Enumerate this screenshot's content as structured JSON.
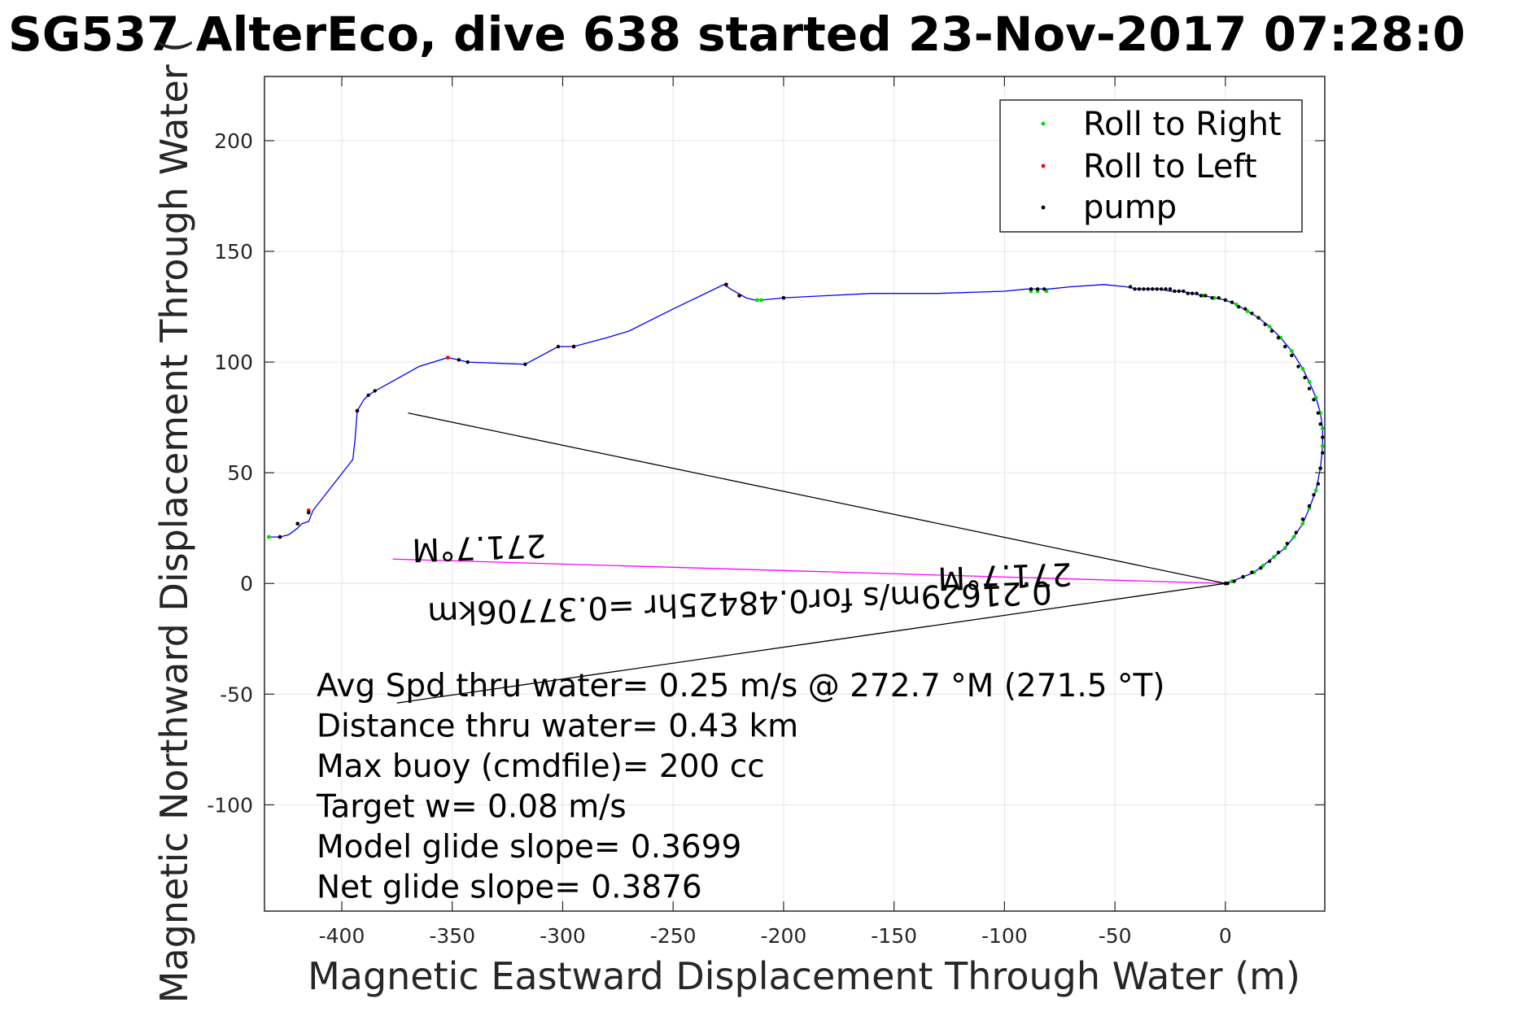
{
  "chart_data": {
    "type": "scatter",
    "title": "SG537 AlterEco, dive 638 started 23-Nov-2017 07:28:0",
    "xlabel": "Magnetic Eastward Displacement Through Water (m)",
    "ylabel": "Magnetic Northward Displacement Through Water (",
    "xlim": [
      -435,
      45
    ],
    "ylim": [
      -148,
      229
    ],
    "grid": true,
    "legend_position": "top-right",
    "xticks": [
      -400,
      -350,
      -300,
      -250,
      -200,
      -150,
      -100,
      -50,
      0
    ],
    "yticks": [
      -100,
      -50,
      0,
      50,
      100,
      150,
      200
    ],
    "colors": {
      "track": "#0000ff",
      "roll_right": "#00dd00",
      "roll_left": "#ff0000",
      "pump": "#000000",
      "current_vector": "#ff00ff",
      "frame": "#262626",
      "grid": "#e6e6e6"
    },
    "legend": [
      {
        "label": "Roll to Right",
        "color": "#00dd00"
      },
      {
        "label": "Roll to Left",
        "color": "#ff0000"
      },
      {
        "label": "pump",
        "color": "#000000"
      }
    ],
    "track": {
      "x": [
        -433,
        -428,
        -424,
        -420,
        -418,
        -415,
        -413,
        -395,
        -394,
        -393,
        -390,
        -388,
        -385,
        -383,
        -365,
        -352,
        -347,
        -343,
        -317,
        -302,
        -295,
        -280,
        -270,
        -250,
        -227,
        -224,
        -217,
        -213,
        -210,
        -200,
        -180,
        -160,
        -150,
        -130,
        -100,
        -90,
        -80,
        -70,
        -55,
        -45,
        -40,
        -35,
        -30,
        -25,
        -20,
        -15,
        -10,
        -5,
        0,
        5,
        10,
        15,
        20,
        25,
        30,
        35,
        38,
        41,
        43,
        44,
        44,
        43,
        41,
        38,
        35,
        31,
        27,
        22,
        17,
        13,
        8,
        3,
        0
      ],
      "y": [
        21,
        21,
        22,
        25,
        27,
        28,
        33,
        56,
        65,
        78,
        83,
        85,
        87,
        88,
        98,
        102,
        101,
        100,
        99,
        107,
        107,
        111,
        114,
        124,
        135,
        133,
        129,
        128,
        128,
        129,
        130,
        131,
        131,
        131,
        132,
        133,
        133,
        134,
        135,
        134,
        133,
        133,
        133,
        132,
        132,
        131,
        130,
        129,
        128,
        126,
        123,
        120,
        116,
        111,
        105,
        97,
        91,
        84,
        77,
        70,
        62,
        52,
        42,
        34,
        27,
        21,
        16,
        12,
        8,
        5,
        3,
        1,
        0
      ]
    },
    "roll_right": {
      "x": [
        -433,
        -210,
        -212,
        -88,
        -85,
        -81,
        -10,
        -5,
        0,
        5,
        10,
        15,
        20,
        25,
        30,
        35,
        38,
        41,
        43,
        44,
        44,
        43,
        41,
        38,
        35,
        31,
        27,
        22,
        17,
        13,
        8,
        3
      ],
      "y": [
        21,
        128,
        128,
        132,
        132,
        132,
        130,
        129,
        128,
        126,
        123,
        120,
        116,
        111,
        105,
        97,
        91,
        84,
        77,
        70,
        62,
        52,
        42,
        34,
        27,
        21,
        16,
        12,
        8,
        5,
        3,
        1
      ]
    },
    "roll_left": {
      "x": [
        -428,
        -420,
        -415,
        -393,
        -352,
        -295,
        -226,
        -220,
        -200,
        0
      ],
      "y": [
        21,
        27,
        33,
        78,
        102,
        107,
        135,
        130,
        129,
        0
      ]
    },
    "pump": {
      "x": [
        -428,
        -420,
        -415,
        -393,
        -388,
        -385,
        -347,
        -343,
        -317,
        -302,
        -295,
        -226,
        -220,
        -200,
        -88,
        -85,
        -82,
        -43,
        -41,
        -39,
        -37,
        -35,
        -33,
        -31,
        -29,
        -27,
        -25,
        -23,
        -21,
        -19,
        -17,
        -15,
        -13,
        -11,
        -9,
        -6,
        -3,
        0,
        3,
        6,
        9,
        12,
        15,
        18,
        21,
        24,
        27,
        30,
        33,
        36,
        38,
        40,
        42,
        43,
        44,
        44,
        43,
        42,
        40,
        38,
        35,
        32,
        28,
        24,
        20,
        16,
        12,
        8,
        4,
        1,
        0
      ],
      "y": [
        21,
        27,
        32,
        78,
        85,
        87,
        101,
        100,
        99,
        107,
        107,
        135,
        130,
        129,
        133,
        133,
        133,
        134,
        133,
        133,
        133,
        133,
        133,
        133,
        133,
        133,
        133,
        132,
        132,
        132,
        131,
        131,
        131,
        130,
        130,
        129,
        129,
        128,
        127,
        125,
        124,
        122,
        120,
        117,
        114,
        111,
        107,
        103,
        98,
        93,
        88,
        83,
        77,
        72,
        66,
        59,
        52,
        45,
        40,
        35,
        29,
        23,
        18,
        14,
        10,
        7,
        5,
        3,
        1,
        0,
        0
      ]
    },
    "lines": [
      {
        "name": "current",
        "color": "#ff00ff",
        "x": [
          0,
          -377
        ],
        "y": [
          0,
          11
        ]
      },
      {
        "name": "upper",
        "color": "#000000",
        "x": [
          0,
          -370
        ],
        "y": [
          0,
          77
        ]
      },
      {
        "name": "lower",
        "color": "#000000",
        "x": [
          0,
          -375
        ],
        "y": [
          0,
          -54
        ]
      }
    ],
    "flipped_annotations": [
      {
        "text": "271.7°M",
        "x": -338
      },
      {
        "text": "271.7°M",
        "x": -100
      },
      {
        "text": "0.21629m/s for0.48425hr =0.37706km",
        "x": -220
      }
    ],
    "stats": [
      "Avg Spd thru water=  0.25 m/s @ 272.7 °M (271.5 °T)",
      "Distance thru water=  0.43 km",
      "Max buoy (cmdfile)= 200 cc",
      "Target w= 0.08 m/s",
      "Model glide slope= 0.3699",
      "Net glide slope= 0.3876"
    ]
  }
}
